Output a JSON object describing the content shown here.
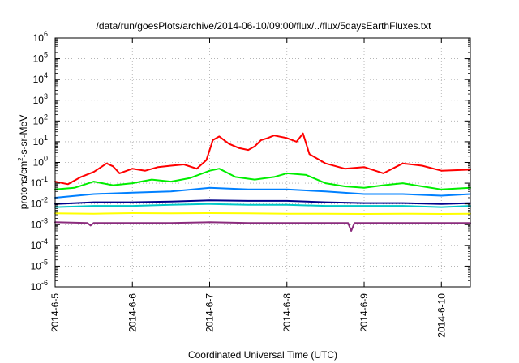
{
  "chart_data": {
    "type": "line",
    "title": "/data/run/goesPlots/archive/2014-06-10/09:00/flux/../flux/5daysEarthFluxes.txt",
    "xlabel": "Coordinated Universal Time (UTC)",
    "ylabel": {
      "pre": "protons/cm",
      "sup": "2",
      "post": "-s-sr-MeV"
    },
    "y_scale": "log",
    "ylim": [
      1e-06,
      1000000.0
    ],
    "y_ticks": [
      {
        "value": 1e-06,
        "base": "10",
        "exp": "-6"
      },
      {
        "value": 1e-05,
        "base": "10",
        "exp": "-5"
      },
      {
        "value": 0.0001,
        "base": "10",
        "exp": "-4"
      },
      {
        "value": 0.001,
        "base": "10",
        "exp": "-3"
      },
      {
        "value": 0.01,
        "base": "10",
        "exp": "-2"
      },
      {
        "value": 0.1,
        "base": "10",
        "exp": "-1"
      },
      {
        "value": 1,
        "base": "10",
        "exp": "0"
      },
      {
        "value": 10,
        "base": "10",
        "exp": "1"
      },
      {
        "value": 100,
        "base": "10",
        "exp": "2"
      },
      {
        "value": 1000,
        "base": "10",
        "exp": "3"
      },
      {
        "value": 10000,
        "base": "10",
        "exp": "4"
      },
      {
        "value": 100000,
        "base": "10",
        "exp": "5"
      },
      {
        "value": 1000000,
        "base": "10",
        "exp": "6"
      }
    ],
    "xlim": [
      "2014-06-05",
      "2014-06-10T09:00"
    ],
    "x_ticks": [
      {
        "value": "2014-06-05",
        "label": "2014-6-5"
      },
      {
        "value": "2014-06-06",
        "label": "2014-6-6"
      },
      {
        "value": "2014-06-07",
        "label": "2014-6-7"
      },
      {
        "value": "2014-06-08",
        "label": "2014-6-8"
      },
      {
        "value": "2014-06-09",
        "label": "2014-6-9"
      },
      {
        "value": "2014-06-10",
        "label": "2014-6-10"
      }
    ],
    "grid": true,
    "legend": "none",
    "series": [
      {
        "color": "#ff0000",
        "points": [
          [
            "2014-06-05T00:00",
            0.12
          ],
          [
            "2014-06-05T04:00",
            0.09
          ],
          [
            "2014-06-05T08:00",
            0.2
          ],
          [
            "2014-06-05T12:00",
            0.35
          ],
          [
            "2014-06-05T16:00",
            0.9
          ],
          [
            "2014-06-05T18:00",
            0.65
          ],
          [
            "2014-06-05T20:00",
            0.3
          ],
          [
            "2014-06-06T00:00",
            0.5
          ],
          [
            "2014-06-06T04:00",
            0.4
          ],
          [
            "2014-06-06T08:00",
            0.6
          ],
          [
            "2014-06-06T12:00",
            0.7
          ],
          [
            "2014-06-06T16:00",
            0.8
          ],
          [
            "2014-06-06T20:00",
            0.5
          ],
          [
            "2014-06-06T23:00",
            1.3
          ],
          [
            "2014-06-07T01:00",
            12
          ],
          [
            "2014-06-07T03:00",
            18
          ],
          [
            "2014-06-07T06:00",
            8
          ],
          [
            "2014-06-07T09:00",
            5
          ],
          [
            "2014-06-07T12:00",
            4
          ],
          [
            "2014-06-07T14:00",
            6
          ],
          [
            "2014-06-07T16:00",
            12
          ],
          [
            "2014-06-07T18:00",
            15
          ],
          [
            "2014-06-07T20:00",
            20
          ],
          [
            "2014-06-08T00:00",
            15
          ],
          [
            "2014-06-08T03:00",
            10
          ],
          [
            "2014-06-08T05:00",
            25
          ],
          [
            "2014-06-08T07:00",
            2.5
          ],
          [
            "2014-06-08T12:00",
            0.9
          ],
          [
            "2014-06-08T18:00",
            0.5
          ],
          [
            "2014-06-09T00:00",
            0.6
          ],
          [
            "2014-06-09T06:00",
            0.3
          ],
          [
            "2014-06-09T12:00",
            0.9
          ],
          [
            "2014-06-09T18:00",
            0.7
          ],
          [
            "2014-06-10T00:00",
            0.4
          ],
          [
            "2014-06-10T09:00",
            0.45
          ]
        ]
      },
      {
        "color": "#00ee00",
        "points": [
          [
            "2014-06-05T00:00",
            0.05
          ],
          [
            "2014-06-05T06:00",
            0.06
          ],
          [
            "2014-06-05T12:00",
            0.12
          ],
          [
            "2014-06-05T18:00",
            0.08
          ],
          [
            "2014-06-06T00:00",
            0.1
          ],
          [
            "2014-06-06T06:00",
            0.15
          ],
          [
            "2014-06-06T12:00",
            0.12
          ],
          [
            "2014-06-06T18:00",
            0.18
          ],
          [
            "2014-06-07T00:00",
            0.4
          ],
          [
            "2014-06-07T03:00",
            0.5
          ],
          [
            "2014-06-07T08:00",
            0.2
          ],
          [
            "2014-06-07T14:00",
            0.15
          ],
          [
            "2014-06-07T20:00",
            0.2
          ],
          [
            "2014-06-08T00:00",
            0.3
          ],
          [
            "2014-06-08T06:00",
            0.25
          ],
          [
            "2014-06-08T12:00",
            0.1
          ],
          [
            "2014-06-08T18:00",
            0.07
          ],
          [
            "2014-06-09T00:00",
            0.06
          ],
          [
            "2014-06-09T06:00",
            0.08
          ],
          [
            "2014-06-09T12:00",
            0.1
          ],
          [
            "2014-06-09T18:00",
            0.07
          ],
          [
            "2014-06-10T00:00",
            0.05
          ],
          [
            "2014-06-10T09:00",
            0.06
          ]
        ]
      },
      {
        "color": "#0080ff",
        "points": [
          [
            "2014-06-05T00:00",
            0.02
          ],
          [
            "2014-06-05T12:00",
            0.03
          ],
          [
            "2014-06-06T00:00",
            0.035
          ],
          [
            "2014-06-06T12:00",
            0.04
          ],
          [
            "2014-06-07T00:00",
            0.06
          ],
          [
            "2014-06-07T12:00",
            0.05
          ],
          [
            "2014-06-08T00:00",
            0.05
          ],
          [
            "2014-06-08T12:00",
            0.04
          ],
          [
            "2014-06-09T00:00",
            0.03
          ],
          [
            "2014-06-09T12:00",
            0.03
          ],
          [
            "2014-06-10T00:00",
            0.025
          ],
          [
            "2014-06-10T09:00",
            0.03
          ]
        ]
      },
      {
        "color": "#00008b",
        "points": [
          [
            "2014-06-05T00:00",
            0.01
          ],
          [
            "2014-06-05T12:00",
            0.012
          ],
          [
            "2014-06-06T00:00",
            0.012
          ],
          [
            "2014-06-06T12:00",
            0.013
          ],
          [
            "2014-06-07T00:00",
            0.015
          ],
          [
            "2014-06-07T12:00",
            0.014
          ],
          [
            "2014-06-08T00:00",
            0.014
          ],
          [
            "2014-06-08T12:00",
            0.012
          ],
          [
            "2014-06-09T00:00",
            0.011
          ],
          [
            "2014-06-09T12:00",
            0.011
          ],
          [
            "2014-06-10T00:00",
            0.01
          ],
          [
            "2014-06-10T09:00",
            0.011
          ]
        ]
      },
      {
        "color": "#00c8c8",
        "points": [
          [
            "2014-06-05T00:00",
            0.007
          ],
          [
            "2014-06-05T12:00",
            0.008
          ],
          [
            "2014-06-06T00:00",
            0.008
          ],
          [
            "2014-06-06T12:00",
            0.009
          ],
          [
            "2014-06-07T00:00",
            0.01
          ],
          [
            "2014-06-07T12:00",
            0.009
          ],
          [
            "2014-06-08T00:00",
            0.009
          ],
          [
            "2014-06-08T12:00",
            0.008
          ],
          [
            "2014-06-09T00:00",
            0.008
          ],
          [
            "2014-06-09T12:00",
            0.008
          ],
          [
            "2014-06-10T00:00",
            0.007
          ],
          [
            "2014-06-10T09:00",
            0.008
          ]
        ]
      },
      {
        "color": "#ffff00",
        "points": [
          [
            "2014-06-05T00:00",
            0.0035
          ],
          [
            "2014-06-05T12:00",
            0.0034
          ],
          [
            "2014-06-06T00:00",
            0.0036
          ],
          [
            "2014-06-06T12:00",
            0.0035
          ],
          [
            "2014-06-07T00:00",
            0.0036
          ],
          [
            "2014-06-07T12:00",
            0.0035
          ],
          [
            "2014-06-08T00:00",
            0.0034
          ],
          [
            "2014-06-08T12:00",
            0.0034
          ],
          [
            "2014-06-09T00:00",
            0.0033
          ],
          [
            "2014-06-09T12:00",
            0.0034
          ],
          [
            "2014-06-10T00:00",
            0.0033
          ],
          [
            "2014-06-10T09:00",
            0.0034
          ]
        ]
      },
      {
        "color": "#8b2c7d",
        "points": [
          [
            "2014-06-05T00:00",
            0.0013
          ],
          [
            "2014-06-05T10:00",
            0.0012
          ],
          [
            "2014-06-05T11:00",
            0.0009
          ],
          [
            "2014-06-05T12:00",
            0.0012
          ],
          [
            "2014-06-06T00:00",
            0.0012
          ],
          [
            "2014-06-06T12:00",
            0.0012
          ],
          [
            "2014-06-07T00:00",
            0.0013
          ],
          [
            "2014-06-07T12:00",
            0.0012
          ],
          [
            "2014-06-08T00:00",
            0.0012
          ],
          [
            "2014-06-08T12:00",
            0.0012
          ],
          [
            "2014-06-08T19:00",
            0.0012
          ],
          [
            "2014-06-08T20:00",
            0.0005
          ],
          [
            "2014-06-08T21:00",
            0.0012
          ],
          [
            "2014-06-09T12:00",
            0.0012
          ],
          [
            "2014-06-10T00:00",
            0.0012
          ],
          [
            "2014-06-10T09:00",
            0.0012
          ]
        ]
      }
    ]
  }
}
